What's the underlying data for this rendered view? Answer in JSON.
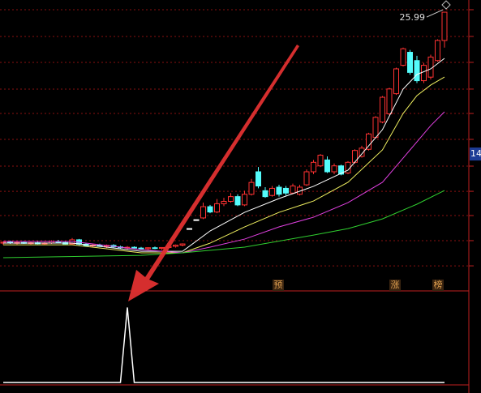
{
  "chart_data": {
    "type": "candlestick",
    "up_color": "#ff3232",
    "down_color": "#54fcfc",
    "flat_color": "#ffffff",
    "ylim": [
      2.5,
      27.02
    ],
    "yticks": [
      26.2,
      23.94,
      21.75,
      19.49,
      17.43,
      15.24,
      12.98,
      10.85,
      8.8,
      6.68,
      4.55
    ],
    "ohlc": [
      [
        6.47,
        6.61,
        6.33,
        6.55
      ],
      [
        6.55,
        6.68,
        6.4,
        6.47
      ],
      [
        6.47,
        6.6,
        6.33,
        6.52
      ],
      [
        6.52,
        6.64,
        6.4,
        6.45
      ],
      [
        6.45,
        6.58,
        6.3,
        6.5
      ],
      [
        6.5,
        6.62,
        6.38,
        6.42
      ],
      [
        6.42,
        6.55,
        6.3,
        6.48
      ],
      [
        6.48,
        6.7,
        6.4,
        6.6
      ],
      [
        6.6,
        6.75,
        6.45,
        6.52
      ],
      [
        6.52,
        6.62,
        6.35,
        6.4
      ],
      [
        6.4,
        6.9,
        6.35,
        6.75
      ],
      [
        6.75,
        6.82,
        6.3,
        6.38
      ],
      [
        6.38,
        6.48,
        6.2,
        6.25
      ],
      [
        6.25,
        6.4,
        6.1,
        6.3
      ],
      [
        6.3,
        6.42,
        6.15,
        6.2
      ],
      [
        6.2,
        6.35,
        6.05,
        6.28
      ],
      [
        6.28,
        6.38,
        6.1,
        6.15
      ],
      [
        6.15,
        6.25,
        6.0,
        6.1
      ],
      [
        6.1,
        6.22,
        5.95,
        6.12
      ],
      [
        6.12,
        6.2,
        5.98,
        6.05
      ],
      [
        6.05,
        6.15,
        5.92,
        6.0
      ],
      [
        6.0,
        6.12,
        5.9,
        6.08
      ],
      [
        6.08,
        6.18,
        5.95,
        6.02
      ],
      [
        6.02,
        6.12,
        5.9,
        6.1
      ],
      [
        6.1,
        6.25,
        6.0,
        6.2
      ],
      [
        6.2,
        6.35,
        6.1,
        6.3
      ],
      [
        6.3,
        6.45,
        6.2,
        6.4
      ],
      [
        7.7,
        7.7,
        7.7,
        7.7
      ],
      [
        8.45,
        8.45,
        8.45,
        8.45
      ],
      [
        8.6,
        9.9,
        8.5,
        9.55
      ],
      [
        9.55,
        9.7,
        9.0,
        9.1
      ],
      [
        9.1,
        10.2,
        9.0,
        9.8
      ],
      [
        9.8,
        10.3,
        9.6,
        10.0
      ],
      [
        10.0,
        10.7,
        9.9,
        10.4
      ],
      [
        10.4,
        10.6,
        9.6,
        9.7
      ],
      [
        9.7,
        10.9,
        9.6,
        10.6
      ],
      [
        10.6,
        11.9,
        10.5,
        11.6
      ],
      [
        12.5,
        12.9,
        11.1,
        11.3
      ],
      [
        10.9,
        11.2,
        10.3,
        10.4
      ],
      [
        10.5,
        11.3,
        10.4,
        11.1
      ],
      [
        11.2,
        11.4,
        10.4,
        10.6
      ],
      [
        11.1,
        11.3,
        10.5,
        10.7
      ],
      [
        10.7,
        11.5,
        10.6,
        11.3
      ],
      [
        10.6,
        11.4,
        10.5,
        11.2
      ],
      [
        11.4,
        12.7,
        11.3,
        12.5
      ],
      [
        12.5,
        13.5,
        12.3,
        13.3
      ],
      [
        13.0,
        14.0,
        12.9,
        13.9
      ],
      [
        13.5,
        13.8,
        12.4,
        12.5
      ],
      [
        12.5,
        13.2,
        12.3,
        13.0
      ],
      [
        13.0,
        13.1,
        12.2,
        12.3
      ],
      [
        12.4,
        13.4,
        12.3,
        13.3
      ],
      [
        13.3,
        14.4,
        13.2,
        14.3
      ],
      [
        13.8,
        14.7,
        13.7,
        14.5
      ],
      [
        14.4,
        15.8,
        14.3,
        15.7
      ],
      [
        15.4,
        17.2,
        15.3,
        17.1
      ],
      [
        16.7,
        18.9,
        16.6,
        18.8
      ],
      [
        17.4,
        19.6,
        17.3,
        19.5
      ],
      [
        19.1,
        21.3,
        19.0,
        21.2
      ],
      [
        21.5,
        23.0,
        21.4,
        22.9
      ],
      [
        22.6,
        22.8,
        20.7,
        20.9
      ],
      [
        21.9,
        22.3,
        20.0,
        20.2
      ],
      [
        20.2,
        21.7,
        20.0,
        21.5
      ],
      [
        20.5,
        22.4,
        20.3,
        22.2
      ],
      [
        21.9,
        23.7,
        21.8,
        23.6
      ],
      [
        23.6,
        25.99,
        23.0,
        25.99
      ]
    ],
    "ma_lines": [
      {
        "color": "#ffffff",
        "x": [
          0,
          10,
          20,
          26,
          30,
          35,
          40,
          45,
          50,
          55,
          58,
          60,
          62,
          64
        ],
        "values": [
          6.47,
          6.47,
          5.78,
          5.78,
          7.5,
          9.07,
          10.24,
          11.27,
          12.64,
          16.06,
          19.49,
          20.72,
          21.2,
          22.09
        ]
      },
      {
        "color": "#f0f060",
        "x": [
          0,
          10,
          20,
          26,
          30,
          35,
          40,
          45,
          50,
          55,
          58,
          60,
          62,
          64
        ],
        "values": [
          6.33,
          6.33,
          5.65,
          5.65,
          6.47,
          7.84,
          9.07,
          10.03,
          11.61,
          14.35,
          17.43,
          18.94,
          19.83,
          20.51
        ]
      },
      {
        "color": "#e040e0",
        "x": [
          0,
          10,
          20,
          26,
          30,
          35,
          40,
          45,
          50,
          55,
          58,
          60,
          62,
          64
        ],
        "values": [
          6.61,
          6.61,
          5.92,
          5.65,
          6.13,
          6.81,
          7.84,
          8.66,
          9.89,
          11.61,
          13.66,
          15.03,
          16.4,
          17.57
        ]
      },
      {
        "color": "#30d030",
        "x": [
          0,
          20,
          26,
          35,
          45,
          50,
          55,
          60,
          64
        ],
        "values": [
          5.24,
          5.44,
          5.65,
          6.13,
          7.15,
          7.7,
          8.52,
          9.76,
          10.92
        ]
      }
    ],
    "high_label": 25.99,
    "price_marker": 14,
    "markers": [
      "预",
      "涨",
      "榜"
    ],
    "signal": {
      "color": "#ffffff",
      "x": [
        0,
        17,
        18,
        19,
        64
      ],
      "values": [
        0,
        0,
        1,
        0,
        0
      ],
      "ylim": [
        0,
        1.2
      ]
    }
  }
}
